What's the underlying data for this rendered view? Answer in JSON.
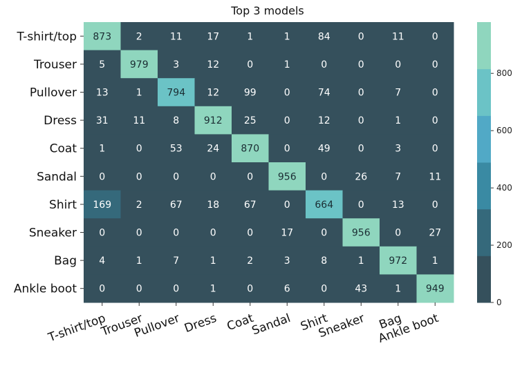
{
  "chart_data": {
    "type": "heatmap",
    "title": "Top 3 models",
    "x_labels": [
      "T-shirt/top",
      "Trouser",
      "Pullover",
      "Dress",
      "Coat",
      "Sandal",
      "Shirt",
      "Sneaker",
      "Bag",
      "Ankle boot"
    ],
    "y_labels": [
      "T-shirt/top",
      "Trouser",
      "Pullover",
      "Dress",
      "Coat",
      "Sandal",
      "Shirt",
      "Sneaker",
      "Bag",
      "Ankle boot"
    ],
    "values": [
      [
        873,
        2,
        11,
        17,
        1,
        1,
        84,
        0,
        11,
        0
      ],
      [
        5,
        979,
        3,
        12,
        0,
        1,
        0,
        0,
        0,
        0
      ],
      [
        13,
        1,
        794,
        12,
        99,
        0,
        74,
        0,
        7,
        0
      ],
      [
        31,
        11,
        8,
        912,
        25,
        0,
        12,
        0,
        1,
        0
      ],
      [
        1,
        0,
        53,
        24,
        870,
        0,
        49,
        0,
        3,
        0
      ],
      [
        0,
        0,
        0,
        0,
        0,
        956,
        0,
        26,
        7,
        11
      ],
      [
        169,
        2,
        67,
        18,
        67,
        0,
        664,
        0,
        13,
        0
      ],
      [
        0,
        0,
        0,
        0,
        0,
        17,
        0,
        956,
        0,
        27
      ],
      [
        4,
        1,
        7,
        1,
        2,
        3,
        8,
        1,
        972,
        1
      ],
      [
        0,
        0,
        0,
        1,
        0,
        6,
        0,
        43,
        1,
        949
      ]
    ],
    "colorbar": {
      "range": [
        0,
        979
      ],
      "ticks": [
        0,
        200,
        400,
        600,
        800
      ],
      "tick_labels": [
        "0",
        "200",
        "400",
        "600",
        "800"
      ],
      "bands": [
        "#35505c",
        "#35697b",
        "#3a8aa3",
        "#51a9c6",
        "#6bc3c6",
        "#8fd6be"
      ]
    },
    "grid": false,
    "legend": "colorbar-right",
    "xtick_rotation": "rotated"
  }
}
